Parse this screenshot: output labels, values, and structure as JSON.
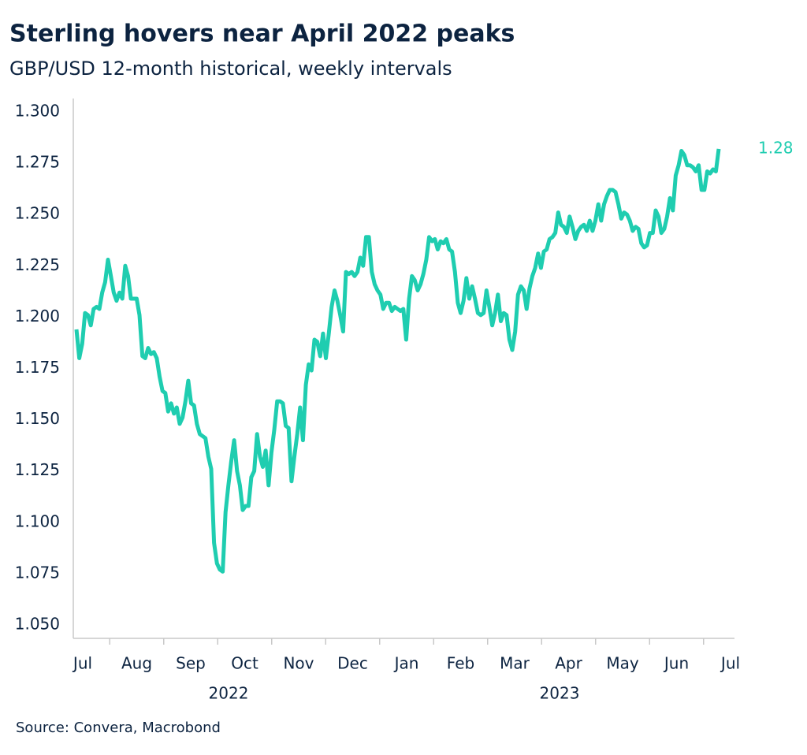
{
  "chart_data": {
    "type": "line",
    "title": "Sterling hovers near April 2022 peaks",
    "subtitle": "GBP/USD 12-month historical, weekly intervals",
    "source": "Source: Convera, Macrobond",
    "x_labels": [
      "Jul",
      "Aug",
      "Sep",
      "Oct",
      "Nov",
      "Dec",
      "Jan",
      "Feb",
      "Mar",
      "Apr",
      "May",
      "Jun",
      "Jul"
    ],
    "year_labels": [
      "2022",
      "2023"
    ],
    "ylim": [
      1.05,
      1.3
    ],
    "yticks": [
      {
        "value": 1.05,
        "label": "1.050"
      },
      {
        "value": 1.075,
        "label": "1.075"
      },
      {
        "value": 1.1,
        "label": "1.100"
      },
      {
        "value": 1.125,
        "label": "1.125"
      },
      {
        "value": 1.15,
        "label": "1.150"
      },
      {
        "value": 1.175,
        "label": "1.175"
      },
      {
        "value": 1.2,
        "label": "1.200"
      },
      {
        "value": 1.225,
        "label": "1.225"
      },
      {
        "value": 1.25,
        "label": "1.250"
      },
      {
        "value": 1.275,
        "label": "1.275"
      },
      {
        "value": 1.3,
        "label": "1.300"
      }
    ],
    "grid": false,
    "series": [
      {
        "name": "GBP/USD",
        "color": "#1fcdb0",
        "end_label": "1.28",
        "values": [
          1.194,
          1.18,
          1.187,
          1.202,
          1.201,
          1.196,
          1.204,
          1.205,
          1.204,
          1.212,
          1.217,
          1.228,
          1.22,
          1.212,
          1.208,
          1.212,
          1.209,
          1.225,
          1.22,
          1.209,
          1.209,
          1.209,
          1.201,
          1.181,
          1.18,
          1.185,
          1.182,
          1.183,
          1.18,
          1.171,
          1.164,
          1.163,
          1.154,
          1.158,
          1.153,
          1.156,
          1.148,
          1.151,
          1.159,
          1.169,
          1.158,
          1.157,
          1.148,
          1.143,
          1.142,
          1.141,
          1.132,
          1.126,
          1.09,
          1.08,
          1.077,
          1.076,
          1.105,
          1.118,
          1.13,
          1.14,
          1.125,
          1.118,
          1.106,
          1.108,
          1.108,
          1.122,
          1.125,
          1.143,
          1.132,
          1.127,
          1.135,
          1.118,
          1.134,
          1.145,
          1.159,
          1.159,
          1.158,
          1.147,
          1.146,
          1.12,
          1.132,
          1.143,
          1.156,
          1.14,
          1.167,
          1.177,
          1.174,
          1.189,
          1.188,
          1.181,
          1.192,
          1.18,
          1.192,
          1.205,
          1.213,
          1.208,
          1.201,
          1.193,
          1.222,
          1.221,
          1.222,
          1.22,
          1.222,
          1.229,
          1.225,
          1.239,
          1.239,
          1.222,
          1.216,
          1.213,
          1.211,
          1.204,
          1.207,
          1.207,
          1.203,
          1.205,
          1.204,
          1.203,
          1.204,
          1.189,
          1.209,
          1.22,
          1.218,
          1.213,
          1.216,
          1.221,
          1.228,
          1.239,
          1.237,
          1.238,
          1.233,
          1.237,
          1.236,
          1.238,
          1.233,
          1.232,
          1.222,
          1.207,
          1.202,
          1.208,
          1.219,
          1.209,
          1.215,
          1.209,
          1.202,
          1.201,
          1.202,
          1.213,
          1.205,
          1.196,
          1.202,
          1.211,
          1.198,
          1.202,
          1.201,
          1.189,
          1.184,
          1.193,
          1.211,
          1.215,
          1.213,
          1.204,
          1.214,
          1.22,
          1.224,
          1.231,
          1.224,
          1.232,
          1.233,
          1.238,
          1.239,
          1.241,
          1.251,
          1.245,
          1.244,
          1.241,
          1.249,
          1.244,
          1.238,
          1.242,
          1.244,
          1.245,
          1.242,
          1.247,
          1.242,
          1.247,
          1.255,
          1.247,
          1.255,
          1.259,
          1.262,
          1.262,
          1.261,
          1.255,
          1.248,
          1.251,
          1.25,
          1.247,
          1.242,
          1.244,
          1.243,
          1.236,
          1.234,
          1.235,
          1.241,
          1.241,
          1.252,
          1.249,
          1.241,
          1.243,
          1.249,
          1.258,
          1.252,
          1.269,
          1.274,
          1.281,
          1.279,
          1.274,
          1.274,
          1.273,
          1.271,
          1.274,
          1.262,
          1.262,
          1.271,
          1.27,
          1.272,
          1.271,
          1.282
        ]
      }
    ]
  }
}
